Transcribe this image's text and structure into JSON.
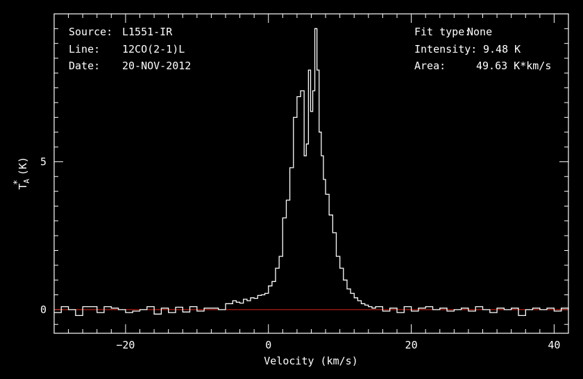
{
  "header": {
    "source_label": "Source:",
    "source_value": "L1551-IR",
    "line_label": "Line:",
    "line_value": "12CO(2-1)L",
    "date_label": "Date:",
    "date_value": "20-NOV-2012",
    "fit_label": "Fit type:",
    "fit_value": "None",
    "intensity_label": "Intensity:",
    "intensity_value": "9.48 K",
    "area_label": "Area:",
    "area_value": "49.63 K*km/s"
  },
  "colors": {
    "background": "#000000",
    "axes": "#ffffff",
    "spectrum": "#ffffff",
    "baseline": "#e0241b"
  },
  "chart_data": {
    "type": "line",
    "title": "",
    "xlabel": "Velocity (km/s)",
    "ylabel_main": "T",
    "ylabel_sub": "A",
    "ylabel_sup": "*",
    "ylabel_unit": "(K)",
    "xlim": [
      -30,
      42
    ],
    "ylim": [
      -0.8,
      10.0
    ],
    "xticks_major": [
      -20,
      0,
      20,
      40
    ],
    "xticks_major_labels": [
      "−20",
      "0",
      "20",
      "40"
    ],
    "yticks_major": [
      0,
      5
    ],
    "yticks_major_labels": [
      "0",
      "5"
    ],
    "baseline": 0,
    "step": true,
    "grid": false,
    "series": [
      {
        "x": [
          -30,
          -29,
          -28,
          -27,
          -26,
          -25,
          -24,
          -23,
          -22,
          -21,
          -20,
          -19,
          -18,
          -17,
          -16,
          -15,
          -14,
          -13,
          -12,
          -11,
          -10,
          -9,
          -8,
          -7,
          -6,
          -5,
          -4.5,
          -4,
          -3.5,
          -3,
          -2.5,
          -2,
          -1.5,
          -1,
          -0.5,
          0,
          0.5,
          1,
          1.5,
          2,
          2.5,
          3,
          3.5,
          4,
          4.5,
          5,
          5.3,
          5.6,
          5.9,
          6.2,
          6.5,
          6.8,
          7.1,
          7.4,
          7.7,
          8,
          8.5,
          9,
          9.5,
          10,
          10.5,
          11,
          11.5,
          12,
          12.5,
          13,
          13.5,
          14,
          14.5,
          15,
          16,
          17,
          18,
          19,
          20,
          21,
          22,
          23,
          24,
          25,
          26,
          27,
          28,
          29,
          30,
          31,
          32,
          33,
          34,
          35,
          36,
          37,
          38,
          39,
          40,
          41,
          42
        ],
        "y": [
          -0.1,
          0.1,
          0,
          -0.2,
          0.1,
          0.1,
          -0.1,
          0.1,
          0.05,
          0,
          -0.1,
          -0.05,
          0,
          0.1,
          -0.15,
          0.05,
          -0.1,
          0.08,
          -0.08,
          0.1,
          -0.05,
          0.05,
          0.05,
          0,
          0.2,
          0.3,
          0.25,
          0.22,
          0.35,
          0.3,
          0.4,
          0.38,
          0.48,
          0.5,
          0.55,
          0.8,
          0.95,
          1.4,
          1.8,
          3.1,
          3.7,
          4.8,
          6.5,
          7.2,
          7.4,
          5.2,
          5.6,
          8.1,
          6.7,
          7.4,
          9.5,
          8.1,
          6.0,
          5.2,
          4.4,
          3.9,
          3.2,
          2.6,
          1.8,
          1.4,
          1.0,
          0.7,
          0.55,
          0.4,
          0.3,
          0.2,
          0.15,
          0.1,
          0.05,
          0.1,
          -0.05,
          0.05,
          -0.1,
          0.1,
          -0.05,
          0.05,
          0.1,
          0,
          0.05,
          -0.05,
          0,
          0.05,
          -0.05,
          0.1,
          0,
          -0.1,
          0.05,
          0,
          0.05,
          -0.2,
          0,
          0.05,
          0,
          0.05,
          -0.05,
          0.05,
          0
        ]
      }
    ]
  }
}
